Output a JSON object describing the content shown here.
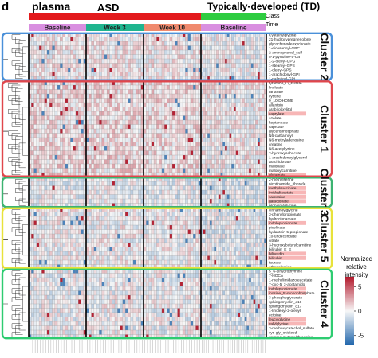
{
  "figure_label": "d",
  "sample_label": "plasma",
  "chart_data": {
    "type": "heatmap",
    "class_bar": {
      "title": "Class",
      "groups": [
        {
          "label": "ASD",
          "color": "#e31a1c"
        },
        {
          "label": "Typically-developed (TD)",
          "color": "#2ecc40"
        }
      ]
    },
    "time_bar": {
      "title": "Time",
      "groups": [
        {
          "label": "Baseline",
          "color": "#d98fe0"
        },
        {
          "label": "Week 3",
          "color": "#1fb58f"
        },
        {
          "label": "Week 10",
          "color": "#f08a6e"
        },
        {
          "label": "Baseline",
          "color": "#d98fe0"
        }
      ]
    },
    "clusters": [
      {
        "label": "Cluster 2",
        "color": "#4a90d9",
        "rows": [
          "Cysteinylglycine",
          "21-hydroxypregnenolone",
          "glycochenodeoxycholate",
          "1-eicosenoyl-GPC",
          "2-aminophenol_sulf",
          "5-1-pyrroline-5-Ca",
          "1-2-oleoyl-GPG",
          "1-stearoyl-GPS",
          "1-oleoyl-GPS",
          "1-arachidonyl-GPI",
          "1-palmitoyl-GPI"
        ]
      },
      {
        "label": "Cluster 1",
        "color": "#e0474c",
        "rows": [
          "tyramine_O_sulfate",
          "linoleate",
          "tartarate",
          "cystine",
          "9_10-DiHOME",
          "allantoin",
          "arabitol/xylitol",
          "caprylate",
          "azelate",
          "heptanoate",
          "caproate",
          "glycerophosphate",
          "N6-carbamoyl",
          "N6-methyladenosine",
          "creatine",
          "N6-acetyllysine",
          "2-hydroxysebacate",
          "1-arachidonoylglycerol",
          "arachidonate",
          "malonate",
          "malonylcarnitine",
          "glutamate"
        ]
      },
      {
        "label": "Cluster 3",
        "color": "#3cb371",
        "rows": [
          "2-methylserine",
          "nicotinamide_riboside",
          "methylsuccinate",
          "imidodiacetate",
          "sarcosine",
          "galactonate",
          "propionylglycine"
        ]
      },
      {
        "label": "Cluster 5",
        "color": "#e8e23a",
        "rows": [
          "cinnamoylglycine",
          "3-phenylpropionate",
          "hydrocinnamate",
          "indolepropionate",
          "picolinate",
          "hydantoin-5-propionate",
          "10-undecenoate",
          "citrate",
          "3-hydroxybutyrylcarnitine",
          "bilirubin_E_E",
          "biliverdin",
          "bilirubin",
          "taurate",
          "ethanolamine"
        ]
      },
      {
        "label": "Cluster 4",
        "color": "#2ecc71",
        "rows": [
          "5_6-dihydrothymine",
          "7-HOCA",
          "1-methylimidazoleacetate",
          "7-oxo-5_3-acetamido",
          "indolepropionate",
          "inosine_5'-monophosphate",
          "3-phosphoglycerate",
          "sphingomyelin_d18",
          "sphingomyelin_d17",
          "1-linoleoyl-2-oleoyl",
          "ectoine",
          "leucylglycine",
          "valylglycine",
          "3-methoxycatechol_sulfate",
          "cys-gly_oxidized",
          "gamma-glutamylthreonine"
        ]
      }
    ],
    "highlighted_rows": [
      "caprylate",
      "glutamate",
      "methylsuccinate",
      "imidodiacetate",
      "sarcosine",
      "galactonate",
      "biliverdin",
      "bilirubin",
      "indolepropionate",
      "inosine_5'-monophosphate",
      "leucylglycine",
      "valylglycine"
    ],
    "n_columns": 96,
    "column_blocks": [
      {
        "label": "Baseline",
        "group": "ASD",
        "n": 22
      },
      {
        "label": "Week 3",
        "group": "ASD",
        "n": 22
      },
      {
        "label": "Week 10",
        "group": "ASD",
        "n": 22
      },
      {
        "label": "Baseline",
        "group": "TD",
        "n": 30
      }
    ],
    "colorbar": {
      "title": "Normalized relative intensity",
      "range": [
        -7,
        7
      ],
      "ticks": [
        "5",
        "0",
        "-5"
      ],
      "colors": [
        "#2166ac",
        "#f7f7f7",
        "#b2182b"
      ]
    }
  }
}
